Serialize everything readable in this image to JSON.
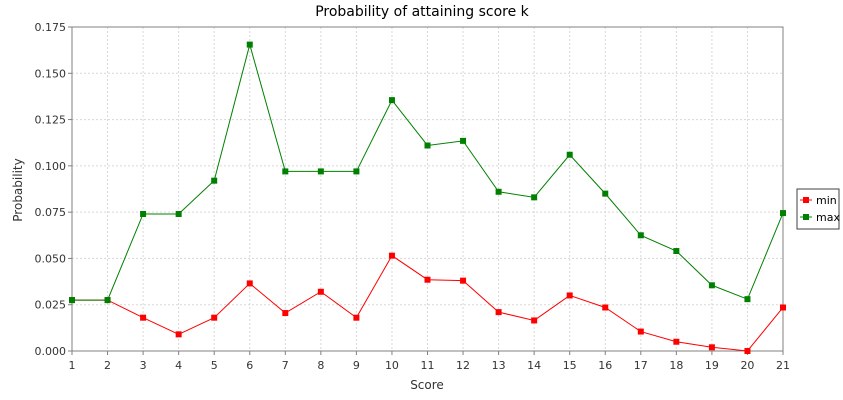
{
  "chart_data": {
    "type": "line",
    "title": "Probability of attaining score k",
    "xlabel": "Score",
    "ylabel": "Probability",
    "x": [
      1,
      2,
      3,
      4,
      5,
      6,
      7,
      8,
      9,
      10,
      11,
      12,
      13,
      14,
      15,
      16,
      17,
      18,
      19,
      20,
      21
    ],
    "xlim": [
      1,
      21
    ],
    "ylim": [
      0,
      0.175
    ],
    "yticks": [
      "0.000",
      "0.025",
      "0.050",
      "0.075",
      "0.100",
      "0.125",
      "0.150",
      "0.175"
    ],
    "grid": true,
    "legend_position": "right",
    "series": [
      {
        "name": "min",
        "color": "#ff0000",
        "values": [
          0.0275,
          0.0275,
          0.018,
          0.009,
          0.018,
          0.0365,
          0.0205,
          0.032,
          0.018,
          0.0515,
          0.0385,
          0.038,
          0.021,
          0.0165,
          0.03,
          0.0235,
          0.0105,
          0.005,
          0.002,
          0.0,
          0.0235
        ]
      },
      {
        "name": "max",
        "color": "#008000",
        "values": [
          0.0275,
          0.0275,
          0.074,
          0.074,
          0.092,
          0.1655,
          0.097,
          0.097,
          0.097,
          0.1355,
          0.111,
          0.1135,
          0.086,
          0.083,
          0.106,
          0.085,
          0.0625,
          0.054,
          0.0355,
          0.028,
          0.0745
        ]
      }
    ]
  }
}
